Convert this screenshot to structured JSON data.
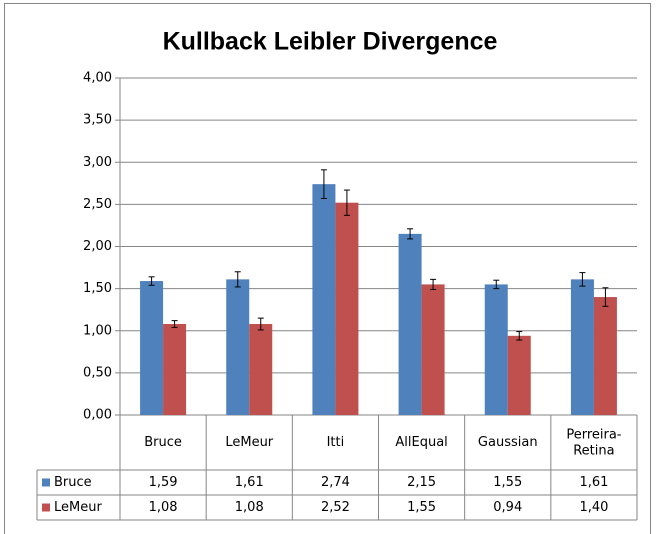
{
  "chart_data": {
    "type": "bar",
    "title": "Kullback Leibler Divergence",
    "categories": [
      "Bruce",
      "LeMeur",
      "Itti",
      "AllEqual",
      "Gaussian",
      "Perreira-Retina"
    ],
    "series": [
      {
        "name": "Bruce",
        "color": "#4f81bd",
        "values": [
          1.59,
          1.61,
          2.74,
          2.15,
          1.55,
          1.61
        ],
        "value_labels": [
          "1,59",
          "1,61",
          "2,74",
          "2,15",
          "1,55",
          "1,61"
        ],
        "errors": [
          0.05,
          0.09,
          0.17,
          0.06,
          0.05,
          0.08
        ]
      },
      {
        "name": "LeMeur",
        "color": "#c0504d",
        "values": [
          1.08,
          1.08,
          2.52,
          1.55,
          0.94,
          1.4
        ],
        "value_labels": [
          "1,08",
          "1,08",
          "2,52",
          "1,55",
          "0,94",
          "1,40"
        ],
        "errors": [
          0.04,
          0.07,
          0.15,
          0.06,
          0.05,
          0.11
        ]
      }
    ],
    "ylim": [
      0,
      4
    ],
    "yticks": [
      {
        "value": 0,
        "label": "0,00"
      },
      {
        "value": 0.5,
        "label": "0,50"
      },
      {
        "value": 1,
        "label": "1,00"
      },
      {
        "value": 1.5,
        "label": "1,50"
      },
      {
        "value": 2,
        "label": "2,00"
      },
      {
        "value": 2.5,
        "label": "2,50"
      },
      {
        "value": 3,
        "label": "3,00"
      },
      {
        "value": 3.5,
        "label": "3,50"
      },
      {
        "value": 4,
        "label": "4,00"
      }
    ],
    "grid": true,
    "data_table": true
  }
}
